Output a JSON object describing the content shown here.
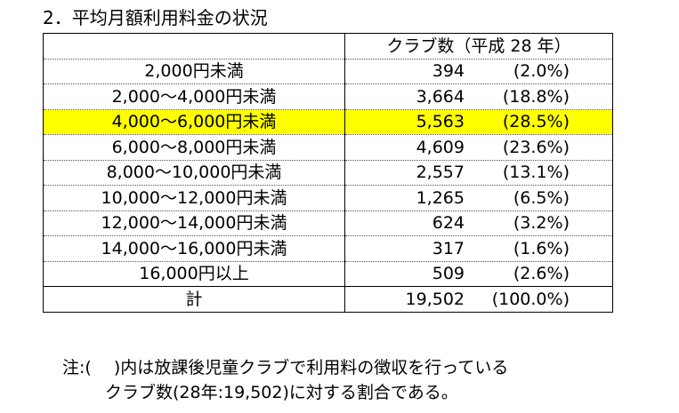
{
  "title": "2．平均月額利用料金の状況",
  "table": {
    "header": "クラブ数（平成 28 年）",
    "rows": [
      {
        "label": "2,000円未満",
        "count": "394",
        "pct": "(2.0%)"
      },
      {
        "label": "2,000～4,000円未満",
        "count": "3,664",
        "pct": "(18.8%)"
      },
      {
        "label": "4,000～6,000円未満",
        "count": "5,563",
        "pct": "(28.5%)"
      },
      {
        "label": "6,000～8,000円未満",
        "count": "4,609",
        "pct": "(23.6%)"
      },
      {
        "label": "8,000～10,000円未満",
        "count": "2,557",
        "pct": "(13.1%)"
      },
      {
        "label": "10,000～12,000円未満",
        "count": "1,265",
        "pct": "(6.5%)"
      },
      {
        "label": "12,000～14,000円未満",
        "count": "624",
        "pct": "(3.2%)"
      },
      {
        "label": "14,000～16,000円未満",
        "count": "317",
        "pct": "(1.6%)"
      },
      {
        "label": "16,000円以上",
        "count": "509",
        "pct": "(2.6%)"
      },
      {
        "label": "計",
        "count": "19,502",
        "pct": "(100.0%)"
      }
    ],
    "highlight_color": "#ffff00"
  },
  "note": {
    "line1": "注:(　 )内は放課後児童クラブで利用料の徴収を行っている",
    "line2": "クラブ数(28年:19,502)に対する割合である。"
  }
}
